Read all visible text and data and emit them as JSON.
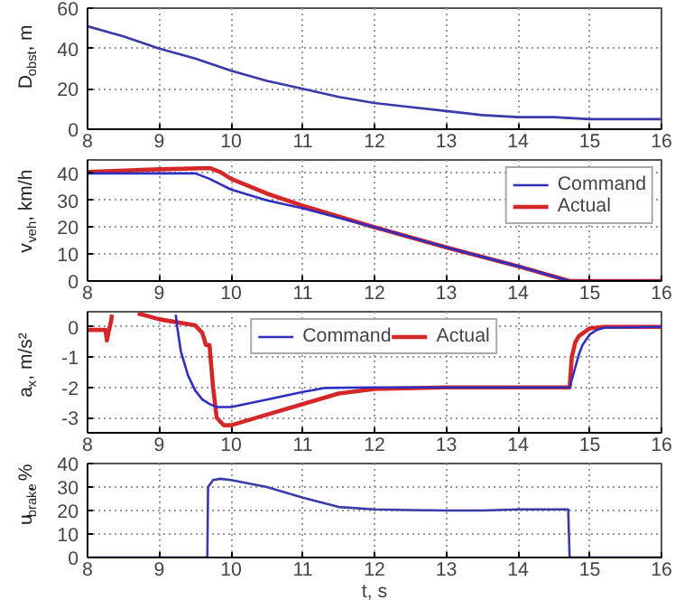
{
  "chart_data": [
    {
      "type": "line",
      "ylabel": "D$_{obst}$, m",
      "xlim": [
        8,
        16
      ],
      "ylim": [
        0,
        60
      ],
      "xticks": [
        8,
        9,
        10,
        11,
        12,
        13,
        14,
        15,
        16
      ],
      "yticks": [
        0,
        20,
        40,
        60
      ],
      "grid": true,
      "series": [
        {
          "color": "#3a3aa8",
          "x": [
            8,
            8.5,
            9,
            9.5,
            10,
            10.5,
            11,
            11.5,
            12,
            12.5,
            13,
            13.5,
            14,
            14.5,
            15,
            16
          ],
          "values": [
            51,
            46,
            40,
            35,
            29,
            24,
            20,
            16,
            13,
            11,
            9,
            7,
            6,
            6,
            5,
            5
          ]
        }
      ]
    },
    {
      "type": "line",
      "ylabel": "v$_{veh}$, km/h",
      "xlim": [
        8,
        16
      ],
      "ylim": [
        0,
        45
      ],
      "xticks": [
        8,
        9,
        10,
        11,
        12,
        13,
        14,
        15,
        16
      ],
      "yticks": [
        0,
        10,
        20,
        30,
        40
      ],
      "grid": true,
      "legend": "top right",
      "series": [
        {
          "name": "Command",
          "color": "#2f2fbf",
          "x": [
            8,
            9,
            9.5,
            9.7,
            10,
            10.5,
            11,
            12,
            13,
            14,
            14.72,
            15,
            16
          ],
          "values": [
            40,
            40,
            40,
            38,
            34,
            30,
            27,
            20,
            12.5,
            5.5,
            0,
            0,
            0
          ]
        },
        {
          "name": "Actual",
          "color": "#d62728",
          "x": [
            8,
            9,
            9.7,
            9.85,
            10,
            10.5,
            11,
            12,
            13,
            14,
            14.72,
            15,
            16
          ],
          "values": [
            40.5,
            41.5,
            42,
            40.5,
            38,
            32.5,
            28,
            20,
            12.5,
            5.5,
            0,
            0,
            0
          ]
        }
      ]
    },
    {
      "type": "line",
      "ylabel": "a$_{x}$, m/s²",
      "xlim": [
        8,
        16
      ],
      "ylim": [
        -3.5,
        0.5
      ],
      "xticks": [
        8,
        9,
        10,
        11,
        12,
        13,
        14,
        15,
        16
      ],
      "yticks": [
        -3,
        -2,
        -1,
        0
      ],
      "grid": true,
      "legend": "top",
      "series": [
        {
          "name": "Command",
          "color": "#2f2fbf",
          "x": [
            9.23,
            9.25,
            9.3,
            9.4,
            9.5,
            9.6,
            9.7,
            9.8,
            10,
            10.5,
            11,
            11.3,
            12,
            13,
            14,
            14.72,
            14.78,
            14.85,
            14.9,
            15,
            15.1,
            15.2,
            16
          ],
          "values": [
            0.4,
            0,
            -0.8,
            -1.6,
            -2.1,
            -2.4,
            -2.55,
            -2.65,
            -2.65,
            -2.4,
            -2.15,
            -2.02,
            -2,
            -2,
            -2,
            -2,
            -1.5,
            -0.9,
            -0.6,
            -0.25,
            -0.1,
            -0.03,
            0
          ]
        },
        {
          "name": "Actual",
          "color": "#d62728",
          "x": [
            8,
            8.25,
            8.27,
            8.3,
            8.33,
            8.34,
            8.45,
            8.7,
            9,
            9.5,
            9.6,
            9.65,
            9.7,
            9.75,
            9.8,
            9.9,
            10,
            10.5,
            11,
            11.5,
            12,
            13,
            14,
            14.72,
            14.75,
            14.8,
            14.85,
            15,
            15.2,
            16
          ],
          "values": [
            -0.1,
            -0.1,
            -0.45,
            -0.1,
            0.2,
            0.4,
            null,
            0.45,
            0.25,
            0.05,
            -0.2,
            -0.6,
            -0.6,
            -2,
            -3,
            -3.25,
            -3.25,
            -2.9,
            -2.55,
            -2.2,
            -2.05,
            -2,
            -2,
            -2,
            -1,
            -0.5,
            -0.3,
            -0.05,
            0,
            0
          ]
        }
      ]
    },
    {
      "type": "line",
      "ylabel": "u$_{brake}$, %",
      "xlabel": "t, s",
      "xlim": [
        8,
        16
      ],
      "ylim": [
        0,
        40
      ],
      "xticks": [
        8,
        9,
        10,
        11,
        12,
        13,
        14,
        15,
        16
      ],
      "yticks": [
        0,
        10,
        20,
        30,
        40
      ],
      "grid": true,
      "series": [
        {
          "color": "#3a3aa8",
          "x": [
            8,
            9,
            9.67,
            9.68,
            9.75,
            9.85,
            10,
            10.5,
            11,
            11.5,
            12,
            12.5,
            13,
            13.5,
            14,
            14.7,
            14.72,
            15,
            16
          ],
          "values": [
            0,
            0,
            0,
            30,
            33,
            33.5,
            33,
            30,
            25.5,
            21.5,
            20.5,
            20.2,
            20,
            20,
            20.5,
            20.5,
            0,
            0,
            0
          ]
        }
      ]
    }
  ]
}
